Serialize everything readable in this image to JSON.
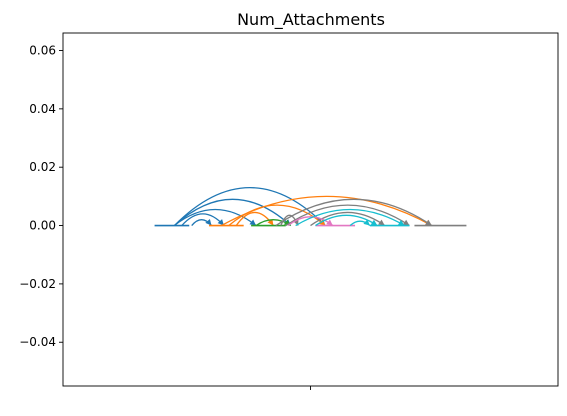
{
  "chart_data": {
    "type": "line",
    "title": "Num_Attachments",
    "xlabel": "",
    "ylabel": "",
    "ylim": [
      -0.055,
      0.066
    ],
    "y_ticks": [
      "0.06",
      "0.04",
      "0.02",
      "0.00",
      "−0.02",
      "−0.04"
    ],
    "x_ticks": [
      ""
    ],
    "xlim": [
      -1,
      1
    ],
    "grid": false,
    "legend": "none",
    "series": [
      {
        "color": "#1f77b4",
        "segment": [
          -0.63,
          -0.49
        ],
        "arcs": [
          [
            -0.55,
            0.06,
            0.013
          ],
          [
            -0.55,
            -0.08,
            0.009
          ],
          [
            -0.55,
            -0.22,
            0.0055
          ],
          [
            -0.52,
            -0.35,
            0.004
          ],
          [
            -0.48,
            -0.4,
            0.002
          ]
        ]
      },
      {
        "color": "#ff7f0e",
        "segment": [
          -0.41,
          -0.27
        ],
        "arcs": [
          [
            -0.36,
            0.49,
            0.01
          ],
          [
            -0.33,
            0.06,
            0.007
          ],
          [
            -0.3,
            -0.15,
            0.0045
          ]
        ]
      },
      {
        "color": "#2ca02c",
        "segment": [
          -0.24,
          -0.1
        ],
        "arcs": [
          [
            -0.22,
            -0.08,
            0.002
          ]
        ]
      },
      {
        "color": "#7f7f7f",
        "segment": [
          0.42,
          0.63
        ],
        "arcs": [
          [
            -0.14,
            0.49,
            0.009
          ],
          [
            -0.1,
            0.4,
            0.007
          ],
          [
            0.0,
            0.3,
            0.0045
          ],
          [
            -0.12,
            -0.05,
            0.0035
          ]
        ]
      },
      {
        "color": "#e377c2",
        "segment": [
          0.02,
          0.18
        ],
        "arcs": [
          [
            -0.09,
            0.09,
            0.003
          ]
        ]
      },
      {
        "color": "#17becf",
        "segment": [
          0.24,
          0.4
        ],
        "arcs": [
          [
            -0.06,
            0.38,
            0.0055
          ],
          [
            0.02,
            0.27,
            0.0035
          ],
          [
            0.16,
            0.24,
            0.0015
          ]
        ]
      }
    ]
  }
}
